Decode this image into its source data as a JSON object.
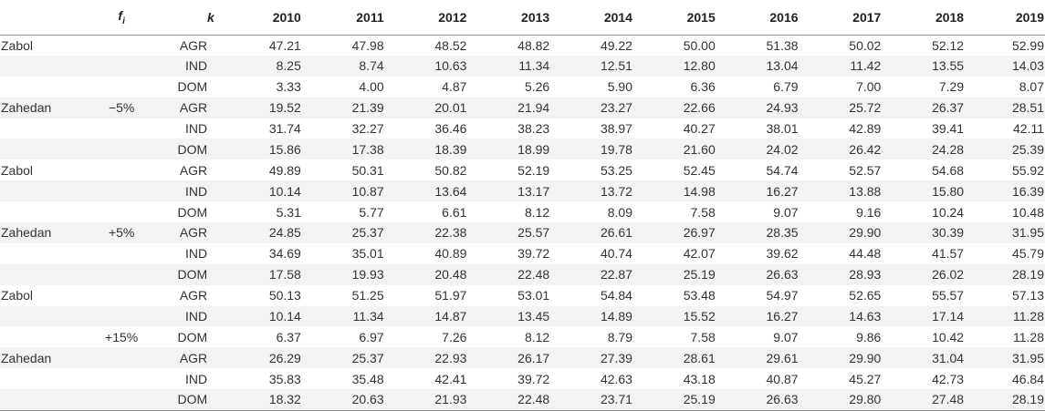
{
  "header": {
    "fi": "f",
    "fi_sub": "i",
    "k": "k",
    "years": [
      "2010",
      "2011",
      "2012",
      "2013",
      "2014",
      "2015",
      "2016",
      "2017",
      "2018",
      "2019"
    ]
  },
  "rows": [
    {
      "city": "Zabol",
      "fi": "",
      "k": "AGR",
      "values": [
        "47.21",
        "47.98",
        "48.52",
        "48.82",
        "49.22",
        "50.00",
        "51.38",
        "50.02",
        "52.12",
        "52.99"
      ]
    },
    {
      "city": "",
      "fi": "",
      "k": "IND",
      "values": [
        "8.25",
        "8.74",
        "10.63",
        "11.34",
        "12.51",
        "12.80",
        "13.04",
        "11.42",
        "13.55",
        "14.03"
      ]
    },
    {
      "city": "",
      "fi": "",
      "k": "DOM",
      "values": [
        "3.33",
        "4.00",
        "4.87",
        "5.26",
        "5.90",
        "6.36",
        "6.79",
        "7.00",
        "7.29",
        "8.07"
      ]
    },
    {
      "city": "Zahedan",
      "fi": "−5%",
      "k": "AGR",
      "values": [
        "19.52",
        "21.39",
        "20.01",
        "21.94",
        "23.27",
        "22.66",
        "24.93",
        "25.72",
        "26.37",
        "28.51"
      ]
    },
    {
      "city": "",
      "fi": "",
      "k": "IND",
      "values": [
        "31.74",
        "32.27",
        "36.46",
        "38.23",
        "38.97",
        "40.27",
        "38.01",
        "42.89",
        "39.41",
        "42.11"
      ]
    },
    {
      "city": "",
      "fi": "",
      "k": "DOM",
      "values": [
        "15.86",
        "17.38",
        "18.39",
        "18.99",
        "19.78",
        "21.60",
        "24.02",
        "26.42",
        "24.28",
        "25.39"
      ]
    },
    {
      "city": "Zabol",
      "fi": "",
      "k": "AGR",
      "values": [
        "49.89",
        "50.31",
        "50.82",
        "52.19",
        "53.25",
        "52.45",
        "54.74",
        "52.57",
        "54.68",
        "55.92"
      ]
    },
    {
      "city": "",
      "fi": "",
      "k": "IND",
      "values": [
        "10.14",
        "10.87",
        "13.64",
        "13.17",
        "13.72",
        "14.98",
        "16.27",
        "13.88",
        "15.80",
        "16.39"
      ]
    },
    {
      "city": "",
      "fi": "",
      "k": "DOM",
      "values": [
        "5.31",
        "5.77",
        "6.61",
        "8.12",
        "8.09",
        "7.58",
        "9.07",
        "9.16",
        "10.24",
        "10.48"
      ]
    },
    {
      "city": "Zahedan",
      "fi": "+5%",
      "k": "AGR",
      "values": [
        "24.85",
        "25.37",
        "22.38",
        "25.57",
        "26.61",
        "26.97",
        "28.35",
        "29.90",
        "30.39",
        "31.95"
      ]
    },
    {
      "city": "",
      "fi": "",
      "k": "IND",
      "values": [
        "34.69",
        "35.01",
        "40.89",
        "39.72",
        "40.74",
        "42.07",
        "39.62",
        "44.48",
        "41.57",
        "45.79"
      ]
    },
    {
      "city": "",
      "fi": "",
      "k": "DOM",
      "values": [
        "17.58",
        "19.93",
        "20.48",
        "22.48",
        "22.87",
        "25.19",
        "26.63",
        "28.93",
        "26.02",
        "28.19"
      ]
    },
    {
      "city": "Zabol",
      "fi": "",
      "k": "AGR",
      "values": [
        "50.13",
        "51.25",
        "51.97",
        "53.01",
        "54.84",
        "53.48",
        "54.97",
        "52.65",
        "55.57",
        "57.13"
      ]
    },
    {
      "city": "",
      "fi": "",
      "k": "IND",
      "values": [
        "10.14",
        "11.34",
        "14.87",
        "13.45",
        "14.89",
        "15.52",
        "16.27",
        "14.63",
        "17.14",
        "11.28"
      ]
    },
    {
      "city": "",
      "fi": "+15%",
      "k": "DOM",
      "values": [
        "6.37",
        "6.97",
        "7.26",
        "8.12",
        "8.79",
        "7.58",
        "9.07",
        "9.86",
        "10.42",
        "11.28"
      ]
    },
    {
      "city": "Zahedan",
      "fi": "",
      "k": "AGR",
      "values": [
        "26.29",
        "25.37",
        "22.93",
        "26.17",
        "27.39",
        "28.61",
        "29.61",
        "29.90",
        "31.04",
        "31.95"
      ]
    },
    {
      "city": "",
      "fi": "",
      "k": "IND",
      "values": [
        "35.83",
        "35.48",
        "42.41",
        "39.72",
        "42.63",
        "43.18",
        "40.87",
        "45.27",
        "42.73",
        "46.84"
      ]
    },
    {
      "city": "",
      "fi": "",
      "k": "DOM",
      "values": [
        "18.32",
        "20.63",
        "21.93",
        "22.48",
        "23.71",
        "25.19",
        "26.63",
        "29.80",
        "27.48",
        "28.19"
      ]
    }
  ]
}
